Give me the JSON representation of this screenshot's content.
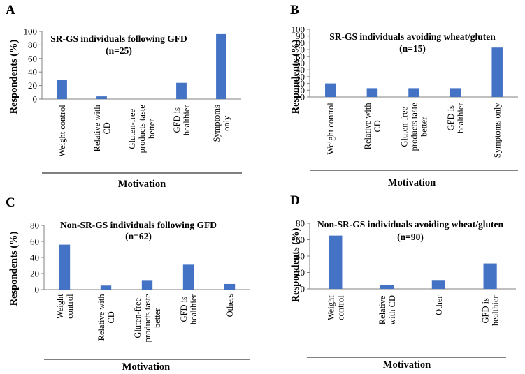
{
  "style": {
    "bar_color": "#4472C4",
    "axis_color": "#808080",
    "text_color": "#000000"
  },
  "chart_data": [
    {
      "panel": "A",
      "type": "bar",
      "title_line1": "SR-GS individuals following GFD",
      "title_line2": "(n=25)",
      "ylabel": "Respondents (%)",
      "xlabel": "Motivation",
      "ylim": [
        0,
        100
      ],
      "yticks": [
        0,
        20,
        40,
        60,
        80,
        100
      ],
      "categories": [
        [
          "Weight control"
        ],
        [
          "Relative with",
          "CD"
        ],
        [
          "Gluten-free",
          "products taste",
          "better"
        ],
        [
          "GFD is",
          "healthier"
        ],
        [
          "Symptoms",
          "only"
        ]
      ],
      "values": [
        28,
        4,
        0,
        24,
        96
      ]
    },
    {
      "panel": "B",
      "type": "bar",
      "title_line1": "SR-GS individuals avoiding wheat/gluten",
      "title_line2": "(n=15)",
      "ylabel": "Respondents (%)",
      "xlabel": "Motivation",
      "ylim": [
        0,
        100
      ],
      "yticks": [
        0,
        10,
        20,
        30,
        40,
        50,
        60,
        70,
        80,
        90,
        100
      ],
      "categories": [
        [
          "Weight control"
        ],
        [
          "Relative with",
          "CD"
        ],
        [
          "Gluten-free",
          "products taste",
          "better"
        ],
        [
          "GFD is",
          "healthier"
        ],
        [
          "Symptoms only"
        ]
      ],
      "values": [
        20,
        13,
        13,
        13,
        73
      ]
    },
    {
      "panel": "C",
      "type": "bar",
      "title_line1": "Non-SR-GS individuals following GFD",
      "title_line2": "(n=62)",
      "ylabel": "Respondents (%)",
      "xlabel": "Motivation",
      "ylim": [
        0,
        80
      ],
      "yticks": [
        0,
        20,
        40,
        60,
        80
      ],
      "categories": [
        [
          "Weight",
          "control"
        ],
        [
          "Relative with",
          "CD"
        ],
        [
          "Gluten-free",
          "products taste",
          "better"
        ],
        [
          "GFD is",
          "healthier"
        ],
        [
          "Others"
        ]
      ],
      "values": [
        56,
        5,
        11,
        31,
        7
      ]
    },
    {
      "panel": "D",
      "type": "bar",
      "title_line1": "Non-SR-GS individuals avoiding wheat/gluten",
      "title_line2": "(n=90)",
      "ylabel": "Respondents (%)",
      "xlabel": "Motivation",
      "ylim": [
        0,
        80
      ],
      "yticks": [
        0,
        20,
        40,
        60,
        80
      ],
      "categories": [
        [
          "Weight",
          "control"
        ],
        [
          "Relative",
          "with CD"
        ],
        [
          "Other"
        ],
        [
          "GFD is",
          "healthier"
        ]
      ],
      "values": [
        65,
        5,
        10,
        31
      ]
    }
  ]
}
